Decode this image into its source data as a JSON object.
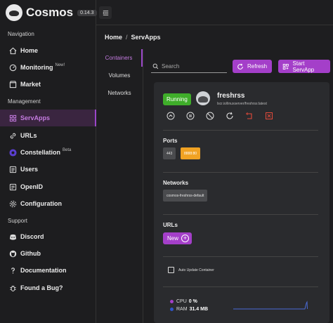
{
  "brand": {
    "name": "Cosmos",
    "version": "0.14.3"
  },
  "sidebar": {
    "sections": {
      "navigation": "Navigation",
      "management": "Management",
      "support": "Support"
    },
    "items": [
      {
        "label": "Home",
        "icon": "home-icon"
      },
      {
        "label": "Monitoring",
        "badge": "New!",
        "icon": "dashboard-icon"
      },
      {
        "label": "Market",
        "icon": "store-icon"
      },
      {
        "label": "ServApps",
        "icon": "apps-icon",
        "active": true
      },
      {
        "label": "URLs",
        "icon": "link-icon"
      },
      {
        "label": "Constellation",
        "badge": "Beta",
        "icon": "constellation-icon"
      },
      {
        "label": "Users",
        "icon": "user-icon"
      },
      {
        "label": "OpenID",
        "icon": "openid-icon"
      },
      {
        "label": "Configuration",
        "icon": "gear-icon"
      },
      {
        "label": "Discord",
        "icon": "discord-icon"
      },
      {
        "label": "Github",
        "icon": "github-icon"
      },
      {
        "label": "Documentation",
        "icon": "question-icon"
      },
      {
        "label": "Found a Bug?",
        "icon": "bug-icon"
      }
    ]
  },
  "breadcrumb": {
    "home": "Home",
    "separator": "/",
    "current": "ServApps"
  },
  "tabs": [
    "Containers",
    "Volumes",
    "Networks"
  ],
  "toolbar": {
    "search_placeholder": "Search",
    "refresh": "Refresh",
    "start": "Start ServApp"
  },
  "card": {
    "status": "Running",
    "name": "freshrss",
    "image": "lscr.io/linuxserver/freshrss:latest",
    "ports_title": "Ports",
    "ports": [
      "443",
      "8888:80"
    ],
    "networks_title": "Networks",
    "networks": [
      "cosmos-freshrss-default"
    ],
    "urls_title": "URLs",
    "new_label": "New",
    "auto_update_label": "Auto Update Container",
    "cpu_label": "CPU",
    "cpu_value": "0 %",
    "ram_label": "RAM",
    "ram_value": "31.4 MB",
    "colors": {
      "cpu": "#a43fc9",
      "ram": "#2f54c9"
    }
  },
  "colors": {
    "accent": "#a43fc9",
    "running": "#3fae2a",
    "port_highlight": "#f0a223"
  }
}
